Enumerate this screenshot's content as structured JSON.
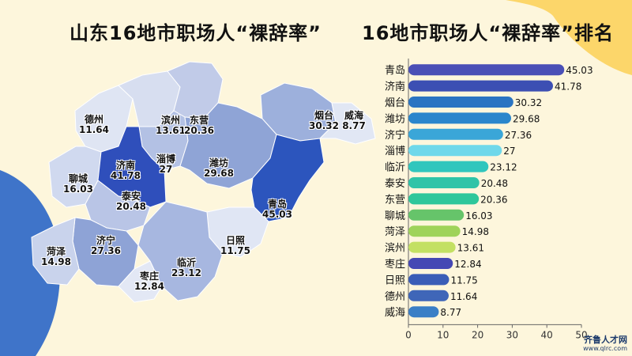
{
  "titles": {
    "left": "山东16地市职场人“裸辞率”",
    "right": "16地市职场人“裸辞率”排名"
  },
  "map_labels": [
    {
      "city": "德州",
      "value": "11.64"
    },
    {
      "city": "滨州",
      "value": "13.61"
    },
    {
      "city": "东营",
      "value": "20.36"
    },
    {
      "city": "烟台",
      "value": "30.32"
    },
    {
      "city": "威海",
      "value": "8.77"
    },
    {
      "city": "淄博",
      "value": "27"
    },
    {
      "city": "潍坊",
      "value": "29.68"
    },
    {
      "city": "聊城",
      "value": "16.03"
    },
    {
      "city": "济南",
      "value": "41.78"
    },
    {
      "city": "泰安",
      "value": "20.48"
    },
    {
      "city": "青岛",
      "value": "45.03"
    },
    {
      "city": "济宁",
      "value": "27.36"
    },
    {
      "city": "日照",
      "value": "11.75"
    },
    {
      "city": "菏泽",
      "value": "14.98"
    },
    {
      "city": "临沂",
      "value": "23.12"
    },
    {
      "city": "枣庄",
      "value": "12.84"
    }
  ],
  "chart_data": {
    "type": "bar",
    "orientation": "horizontal",
    "categories": [
      "青岛",
      "济南",
      "烟台",
      "潍坊",
      "济宁",
      "淄博",
      "临沂",
      "泰安",
      "东营",
      "聊城",
      "菏泽",
      "滨州",
      "枣庄",
      "日照",
      "德州",
      "威海"
    ],
    "values": [
      45.03,
      41.78,
      30.32,
      29.68,
      27.36,
      27,
      23.12,
      20.48,
      20.36,
      16.03,
      14.98,
      13.61,
      12.84,
      11.75,
      11.64,
      8.77
    ],
    "value_labels": [
      "45.03",
      "41.78",
      "30.32",
      "29.68",
      "27.36",
      "27",
      "23.12",
      "20.48",
      "20.36",
      "16.03",
      "14.98",
      "13.61",
      "12.84",
      "11.75",
      "11.64",
      "8.77"
    ],
    "colors": [
      "#4a4fb6",
      "#3c4fb3",
      "#2a74c2",
      "#2a86cc",
      "#3aa6d8",
      "#6fd8ea",
      "#30c6bd",
      "#2fc4a8",
      "#2ec79b",
      "#66c46a",
      "#9fd35a",
      "#c3e063",
      "#4548b4",
      "#3a5db7",
      "#3f66b8",
      "#3a7fc6"
    ],
    "xlim": [
      0,
      50
    ],
    "xticks": [
      "0",
      "10",
      "20",
      "30",
      "40",
      "50"
    ],
    "title": "16地市职场人“裸辞率”排名",
    "grid": false
  },
  "watermark": {
    "text": "齐鲁人才网",
    "sub": "www.qlrc.com"
  }
}
